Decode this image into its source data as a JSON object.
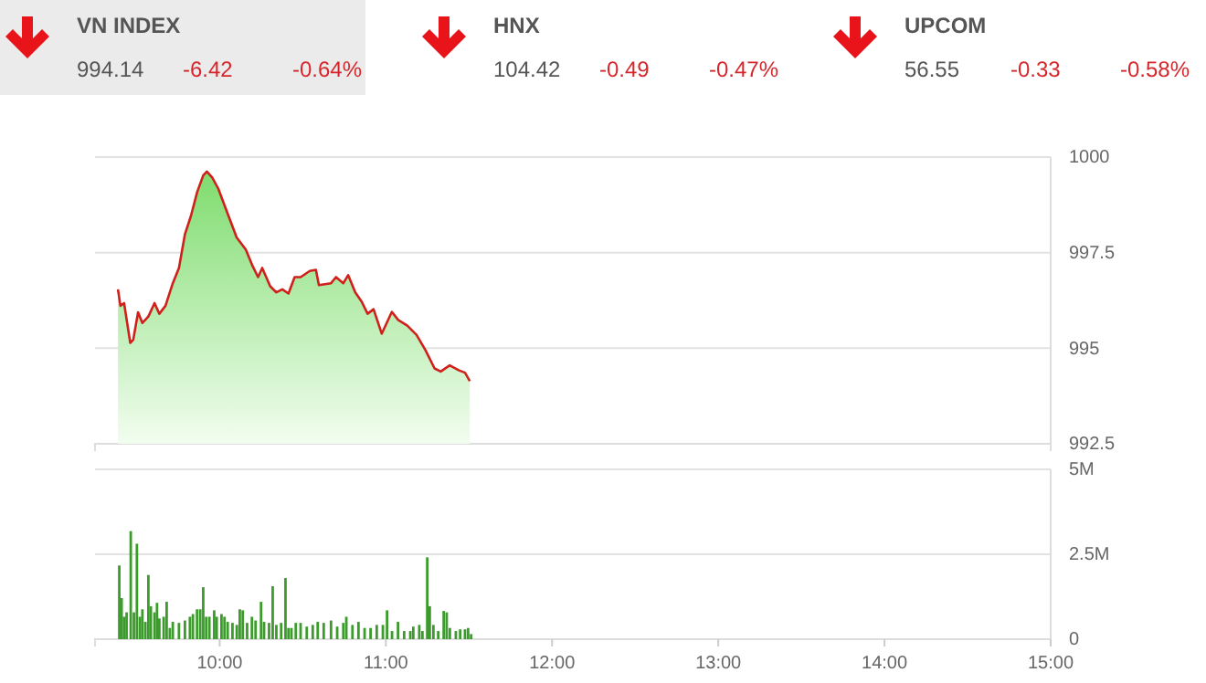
{
  "chart_data": [
    {
      "type": "other",
      "title": "VN INDEX",
      "annotations": [
        "994.14",
        "-6.42",
        "-0.64%"
      ]
    },
    {
      "type": "other",
      "title": "HNX",
      "annotations": [
        "104.42",
        "-0.49",
        "-0.47%"
      ]
    },
    {
      "type": "other",
      "title": "UPCOM",
      "annotations": [
        "56.55",
        "-0.33",
        "-0.58%"
      ]
    },
    {
      "type": "area",
      "color": "#d0201b",
      "xlim": [
        9.25,
        15
      ],
      "ylim": [
        992.5,
        1000
      ],
      "yticks": [
        992.5,
        995,
        997.5,
        1000
      ],
      "grid": "y",
      "tick_labels": "y",
      "x": [
        9.388,
        9.403,
        9.425,
        9.462,
        9.48,
        9.509,
        9.535,
        9.571,
        9.608,
        9.637,
        9.674,
        9.718,
        9.755,
        9.791,
        9.827,
        9.865,
        9.901,
        9.923,
        9.956,
        9.992,
        10.047,
        10.102,
        10.157,
        10.195,
        10.231,
        10.256,
        10.304,
        10.341,
        10.377,
        10.414,
        10.451,
        10.487,
        10.542,
        10.579,
        10.597,
        10.67,
        10.7,
        10.744,
        10.773,
        10.816,
        10.854,
        10.89,
        10.926,
        10.975,
        11.036,
        11.074,
        11.129,
        11.184,
        11.238,
        11.293,
        11.33,
        11.384,
        11.44,
        11.476,
        11.505
      ],
      "values": [
        996.54,
        996.11,
        996.18,
        995.14,
        995.22,
        995.94,
        995.66,
        995.83,
        996.18,
        995.9,
        996.11,
        996.7,
        997.1,
        997.98,
        998.46,
        999.09,
        999.52,
        999.62,
        999.46,
        999.17,
        998.53,
        997.9,
        997.58,
        997.18,
        996.86,
        997.1,
        996.62,
        996.46,
        996.54,
        996.43,
        996.86,
        996.86,
        997.02,
        997.05,
        996.65,
        996.7,
        996.86,
        996.7,
        996.91,
        996.46,
        996.22,
        995.9,
        996.02,
        995.38,
        995.95,
        995.74,
        995.59,
        995.35,
        994.95,
        994.47,
        994.39,
        994.55,
        994.42,
        994.36,
        994.14
      ]
    },
    {
      "type": "bar",
      "color": "#3d9b2e",
      "xlim": [
        9.25,
        15
      ],
      "ylim": [
        0,
        5000000
      ],
      "yticks": [
        {
          "value": 0,
          "label": "0"
        },
        {
          "value": 2500000,
          "label": "2.5M"
        },
        {
          "value": 5000000,
          "label": "5M"
        }
      ],
      "xticks": [
        {
          "value": 10,
          "label": "10:00"
        },
        {
          "value": 11,
          "label": "11:00"
        },
        {
          "value": 12,
          "label": "12:00"
        },
        {
          "value": 13,
          "label": "13:00"
        },
        {
          "value": 14,
          "label": "14:00"
        },
        {
          "value": 15,
          "label": "15:00"
        }
      ],
      "grid": "y",
      "x": [
        9.396,
        9.41,
        9.425,
        9.44,
        9.465,
        9.484,
        9.502,
        9.52,
        9.535,
        9.553,
        9.571,
        9.586,
        9.608,
        9.623,
        9.637,
        9.663,
        9.681,
        9.7,
        9.718,
        9.755,
        9.791,
        9.821,
        9.839,
        9.864,
        9.883,
        9.901,
        9.919,
        9.938,
        9.967,
        9.982,
        10.011,
        10.029,
        10.048,
        10.077,
        10.103,
        10.121,
        10.139,
        10.165,
        10.194,
        10.216,
        10.249,
        10.267,
        10.297,
        10.319,
        10.341,
        10.37,
        10.396,
        10.414,
        10.432,
        10.458,
        10.487,
        10.524,
        10.56,
        10.59,
        10.626,
        10.67,
        10.707,
        10.744,
        10.762,
        10.799,
        10.835,
        10.872,
        10.908,
        10.945,
        10.982,
        11.007,
        11.037,
        11.073,
        11.11,
        11.147,
        11.165,
        11.201,
        11.22,
        11.249,
        11.264,
        11.286,
        11.315,
        11.348,
        11.366,
        11.385,
        11.421,
        11.447,
        11.476,
        11.495,
        11.513
      ],
      "values": [
        2170000,
        1210000,
        660000,
        790000,
        3180000,
        790000,
        2810000,
        660000,
        880000,
        510000,
        1890000,
        970000,
        790000,
        1070000,
        610000,
        660000,
        1100000,
        330000,
        510000,
        480000,
        550000,
        660000,
        740000,
        880000,
        880000,
        1530000,
        660000,
        660000,
        850000,
        660000,
        740000,
        660000,
        510000,
        480000,
        420000,
        880000,
        850000,
        480000,
        660000,
        550000,
        1100000,
        510000,
        480000,
        1560000,
        420000,
        480000,
        1800000,
        330000,
        330000,
        480000,
        480000,
        370000,
        420000,
        510000,
        480000,
        550000,
        370000,
        480000,
        660000,
        420000,
        510000,
        330000,
        330000,
        420000,
        420000,
        850000,
        240000,
        510000,
        240000,
        240000,
        370000,
        420000,
        240000,
        2410000,
        970000,
        420000,
        240000,
        830000,
        790000,
        330000,
        240000,
        290000,
        290000,
        330000,
        150000
      ]
    }
  ]
}
